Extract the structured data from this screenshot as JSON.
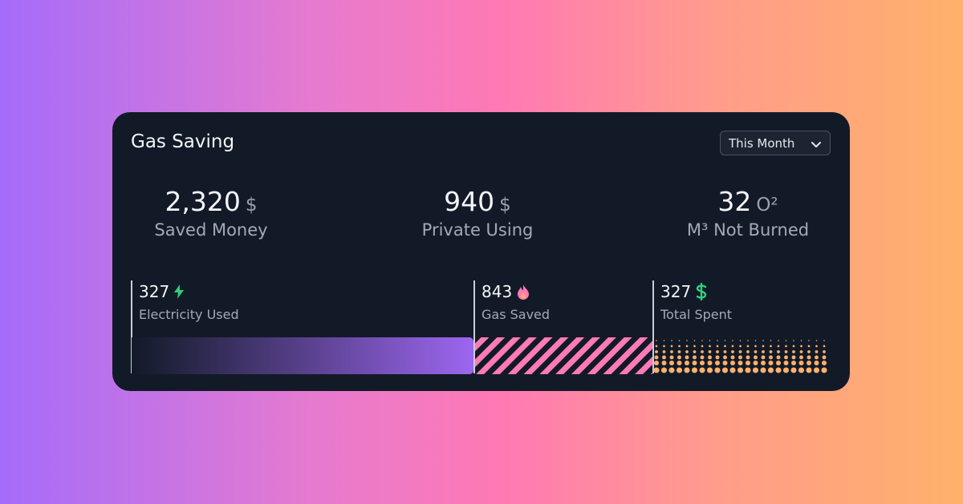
{
  "card": {
    "title": "Gas Saving",
    "period": "This Month",
    "stats": [
      {
        "value": "2,320",
        "unit": "$",
        "label": "Saved Money"
      },
      {
        "value": "940",
        "unit": "$",
        "label": "Private Using"
      },
      {
        "value": "32",
        "unit": "O²",
        "label": "M³ Not Burned"
      }
    ],
    "segments": [
      {
        "value": "327",
        "label": "Electricity Used"
      },
      {
        "value": "843",
        "label": "Gas Saved"
      },
      {
        "value": "327",
        "label": "Total Spent"
      }
    ]
  }
}
